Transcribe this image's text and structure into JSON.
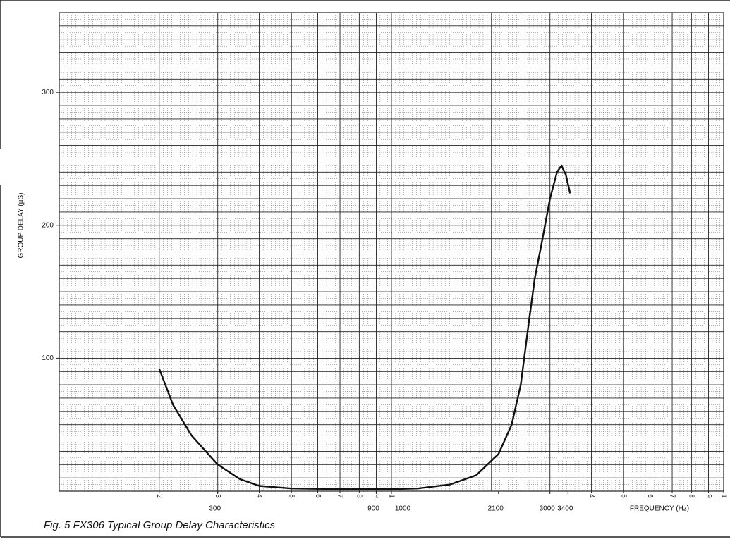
{
  "chart_data": {
    "type": "line",
    "title": "Fig. 5   FX306 Typical Group Delay Characteristics",
    "x_label": "FREQUENCY (Hz)",
    "y_label": "GROUP DELAY (µS)",
    "log_x": true,
    "grid": true,
    "color": "#111111",
    "x": [
      200,
      220,
      250,
      300,
      350,
      400,
      500,
      700,
      1000,
      1200,
      1500,
      1800,
      2100,
      2300,
      2450,
      2600,
      2700,
      2850,
      3000,
      3150,
      3250,
      3350,
      3450
    ],
    "values": [
      92,
      65,
      42,
      20,
      9,
      4,
      2,
      1.5,
      1.5,
      2,
      5,
      12,
      28,
      50,
      80,
      130,
      160,
      190,
      220,
      240,
      245,
      238,
      224
    ],
    "xlim": [
      100,
      10000
    ],
    "ylim": [
      0,
      360
    ],
    "xticks": [
      300,
      900,
      1000,
      2100,
      3000,
      3400
    ],
    "minor_xticks": [
      {
        "value": 200,
        "label": "2"
      },
      {
        "value": 300,
        "label": "3"
      },
      {
        "value": 400,
        "label": "4"
      },
      {
        "value": 500,
        "label": "5"
      },
      {
        "value": 600,
        "label": "6"
      },
      {
        "value": 700,
        "label": "7"
      },
      {
        "value": 800,
        "label": "8"
      },
      {
        "value": 900,
        "label": "9"
      },
      {
        "value": 1000,
        "label": "1"
      },
      {
        "value": 4000,
        "label": "4"
      },
      {
        "value": 5000,
        "label": "5"
      },
      {
        "value": 6000,
        "label": "6"
      },
      {
        "value": 7000,
        "label": "7"
      },
      {
        "value": 8000,
        "label": "8"
      },
      {
        "value": 9000,
        "label": "9"
      },
      {
        "value": 10000,
        "label": "1"
      }
    ],
    "yticks": [
      100,
      200,
      300
    ],
    "x_grid": [
      100,
      200,
      300,
      400,
      500,
      600,
      700,
      800,
      900,
      1000,
      2000,
      3000,
      4000,
      5000,
      6000,
      7000,
      8000,
      9000,
      10000
    ],
    "y_grid": [
      0,
      10,
      20,
      30,
      40,
      50,
      60,
      70,
      80,
      90,
      100,
      110,
      120,
      130,
      140,
      150,
      160,
      170,
      180,
      190,
      200,
      210,
      220,
      230,
      240,
      250,
      260,
      270,
      280,
      290,
      300,
      310,
      320,
      330,
      340,
      350,
      360
    ]
  }
}
